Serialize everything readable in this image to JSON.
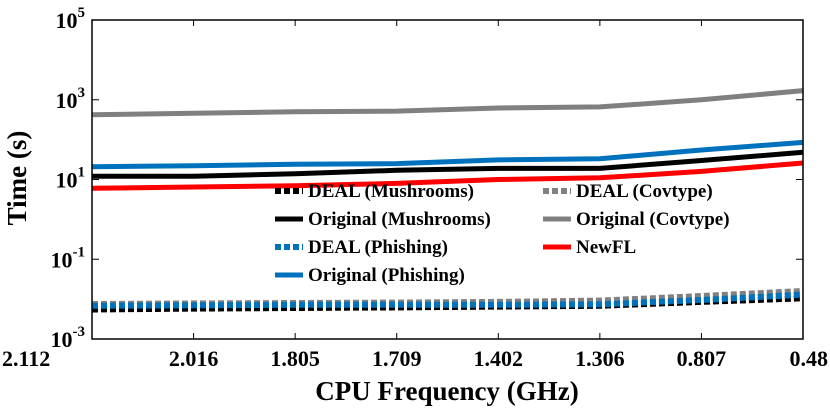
{
  "chart_data": {
    "type": "line",
    "title": "",
    "xlabel": "CPU Frequency (GHz)",
    "ylabel": "Time (s)",
    "x": [
      "2.112",
      "2.016",
      "1.805",
      "1.709",
      "1.402",
      "1.306",
      "0.807",
      "0.48"
    ],
    "yscale": "log",
    "ylim": [
      0.001,
      100000
    ],
    "yticks": [
      {
        "base": "10",
        "exp": "-3"
      },
      {
        "base": "10",
        "exp": "-1"
      },
      {
        "base": "10",
        "exp": "1"
      },
      {
        "base": "10",
        "exp": "3"
      },
      {
        "base": "10",
        "exp": "5"
      }
    ],
    "series": [
      {
        "name": "DEAL (Mushrooms)",
        "style": "dotted",
        "color": "#000000",
        "values": [
          0.0055,
          0.0058,
          0.006,
          0.0062,
          0.0065,
          0.0068,
          0.0085,
          0.0105
        ]
      },
      {
        "name": "DEAL (Covtype)",
        "style": "dotted",
        "color": "#808080",
        "values": [
          0.0075,
          0.0078,
          0.008,
          0.0082,
          0.0085,
          0.0092,
          0.012,
          0.016
        ]
      },
      {
        "name": "Original (Mushrooms)",
        "style": "solid",
        "color": "#000000",
        "values": [
          12,
          12,
          14,
          17,
          19,
          19,
          30,
          48
        ]
      },
      {
        "name": "Original (Covtype)",
        "style": "solid",
        "color": "#808080",
        "values": [
          420,
          460,
          500,
          520,
          620,
          660,
          1000,
          1700
        ]
      },
      {
        "name": "DEAL (Phishing)",
        "style": "dotted",
        "color": "#0072bd",
        "values": [
          0.0068,
          0.007,
          0.0072,
          0.0072,
          0.0072,
          0.0074,
          0.0095,
          0.013
        ]
      },
      {
        "name": "NewFL",
        "style": "solid",
        "color": "#ff0000",
        "values": [
          6,
          6.5,
          7,
          8,
          10,
          11,
          16,
          26
        ]
      },
      {
        "name": "Original (Phishing)",
        "style": "solid",
        "color": "#0072bd",
        "values": [
          21,
          22,
          24,
          25,
          31,
          33,
          55,
          85
        ]
      }
    ],
    "legend": "inside-center",
    "grid": false
  }
}
